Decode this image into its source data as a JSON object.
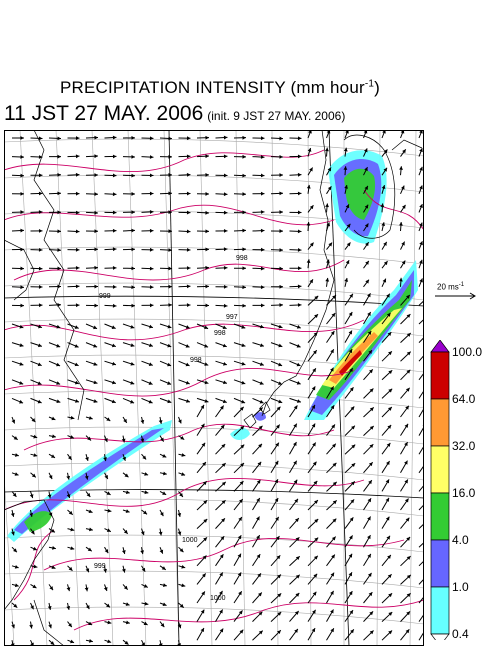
{
  "title": {
    "main": "PRECIPITATION INTENSITY (mm hour",
    "main_sup": "-1",
    "main_close": ")",
    "datetime": "11 JST 27 MAY. 2006",
    "init": "(init. 9 JST 27 MAY. 2006)"
  },
  "reference_vector": {
    "label": "20 ms",
    "label_sup": "-1"
  },
  "colorbar": {
    "levels": [
      "100.0",
      "64.0",
      "32.0",
      "16.0",
      "4.0",
      "1.0",
      "0.4"
    ],
    "colors": [
      "#cc0000",
      "#ff9933",
      "#ffff66",
      "#33cc33",
      "#6666ff",
      "#66ffff",
      "#ffffff"
    ],
    "top_triangle_color": "#9900cc"
  },
  "pressure_labels": [
    "998",
    "999",
    "997",
    "998",
    "998",
    "1000",
    "999",
    "1000"
  ],
  "precip_colors": {
    "light": "#66ffff",
    "moderate": "#6666ff",
    "heavy": "#33cc33",
    "very_heavy": "#ffff66",
    "intense": "#ff9933",
    "extreme": "#cc0000"
  },
  "styles": {
    "coast_color": "#000000",
    "grid_color": "#aaaaaa",
    "isobar_color": "#cc0066",
    "arrow_color": "#000000"
  }
}
